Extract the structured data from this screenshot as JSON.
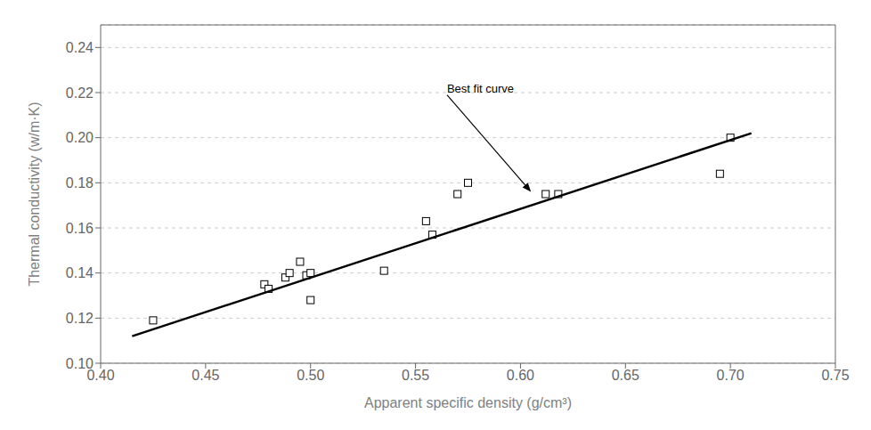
{
  "chart_data": {
    "type": "scatter",
    "xlabel": "Apparent specific density (g/cm³)",
    "ylabel": "Thermal conductivity (w/m·K)",
    "series": [
      {
        "type": "scatter",
        "marker": "square",
        "color": "black",
        "x": [
          0.425,
          0.478,
          0.48,
          0.488,
          0.49,
          0.495,
          0.498,
          0.5,
          0.5,
          0.535,
          0.555,
          0.558,
          0.57,
          0.575,
          0.612,
          0.618,
          0.695,
          0.7
        ],
        "values": [
          0.119,
          0.135,
          0.133,
          0.138,
          0.14,
          0.145,
          0.139,
          0.14,
          0.128,
          0.141,
          0.163,
          0.157,
          0.175,
          0.18,
          0.175,
          0.175,
          0.184,
          0.2
        ]
      },
      {
        "type": "line",
        "color": "black",
        "line_style": "solid",
        "x": [
          0.415,
          0.71
        ],
        "values": [
          0.112,
          0.202
        ]
      }
    ],
    "annotations": [
      {
        "text": "Best fit curve",
        "x": 0.605,
        "y": 0.176,
        "text_x": 0.565,
        "text_y": 0.219
      }
    ],
    "xlim": [
      0.4,
      0.75
    ],
    "ylim": [
      0.1,
      0.25
    ],
    "xticks": [
      {
        "value": 0.4,
        "label": "0.40"
      },
      0.45,
      {
        "value": 0.5,
        "label": "0.50"
      },
      0.55,
      {
        "value": 0.6,
        "label": "0.60"
      },
      0.65,
      {
        "value": 0.7,
        "label": "0.70"
      },
      0.75
    ],
    "yticks": [
      {
        "value": 0.1,
        "label": "0.10"
      },
      0.12,
      0.14,
      0.16,
      0.18,
      {
        "value": 0.2,
        "label": "0.20"
      },
      0.22,
      0.24
    ],
    "grid": "y"
  }
}
